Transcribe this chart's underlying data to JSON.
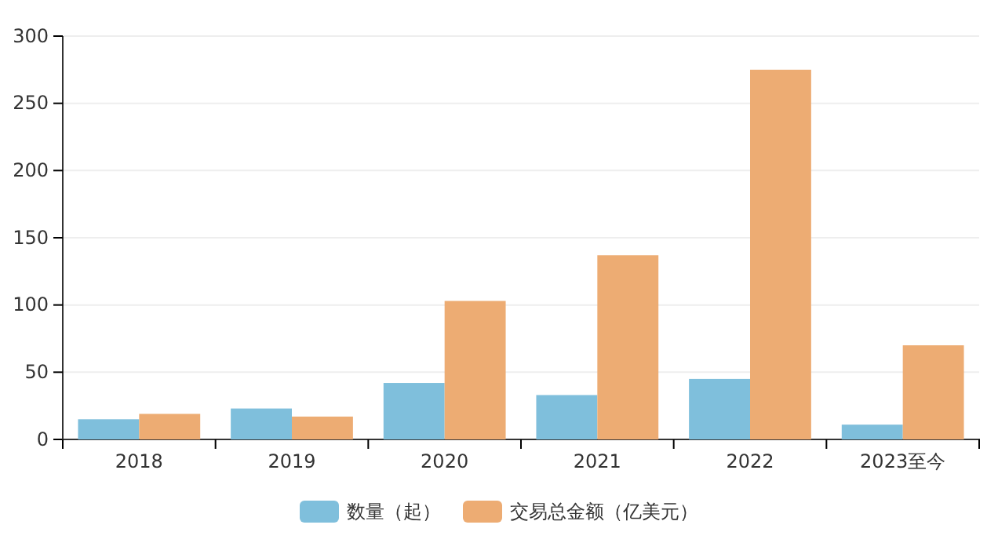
{
  "chart_data": {
    "type": "bar",
    "categories": [
      "2018",
      "2019",
      "2020",
      "2021",
      "2022",
      "2023至今"
    ],
    "series": [
      {
        "name": "数量（起）",
        "color": "#7fbfdc",
        "values": [
          15,
          23,
          42,
          33,
          45,
          11
        ]
      },
      {
        "name": "交易总金额（亿美元）",
        "color": "#edac73",
        "values": [
          19,
          17,
          103,
          137,
          275,
          70
        ]
      }
    ],
    "ylim": [
      0,
      300
    ],
    "yticks": [
      0,
      50,
      100,
      150,
      200,
      250,
      300
    ],
    "grid": "y",
    "legend": "bottom"
  }
}
